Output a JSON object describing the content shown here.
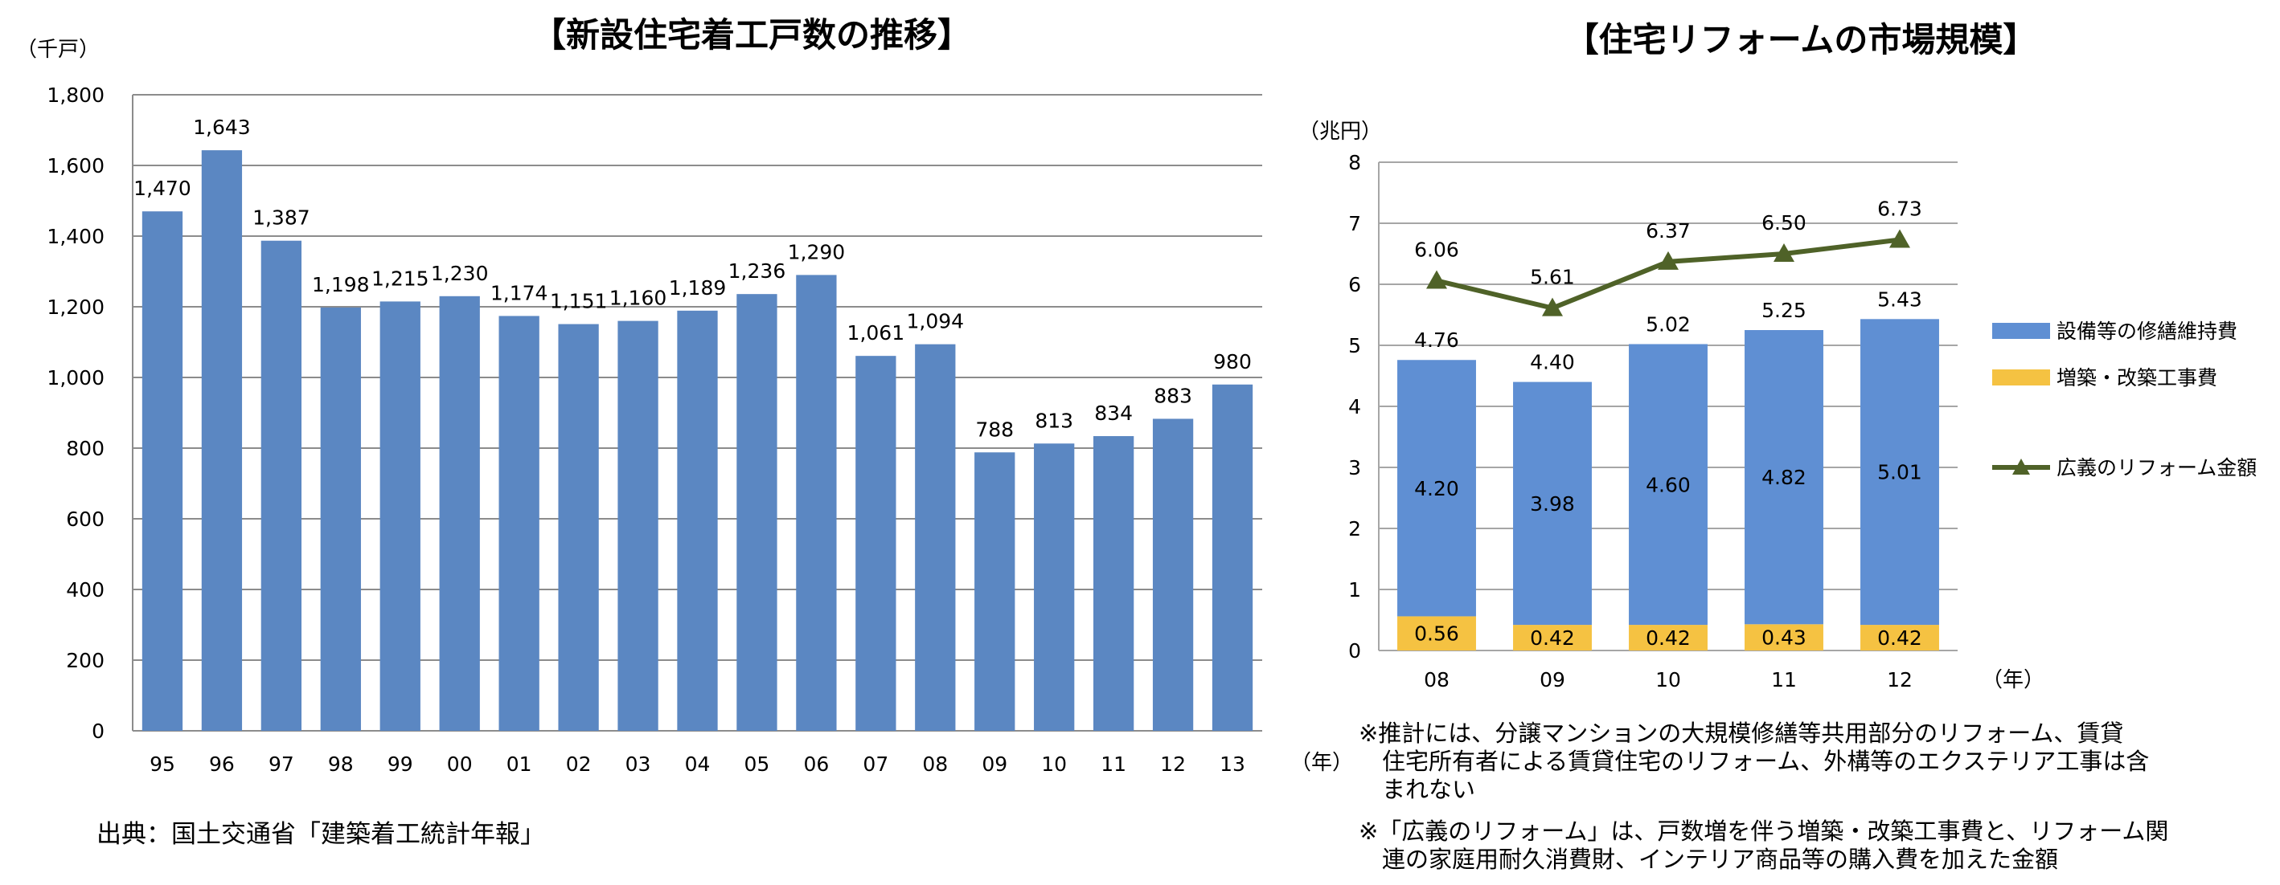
{
  "chart_data": [
    {
      "type": "bar",
      "title": "【新設住宅着工戸数の推移】",
      "ylabel": "（千戸）",
      "xlabel": "（年）",
      "ylim": [
        0,
        1800
      ],
      "yticks": [
        0,
        200,
        400,
        600,
        800,
        1000,
        1200,
        1400,
        1600,
        1800
      ],
      "ytick_labels": [
        "0",
        "200",
        "400",
        "600",
        "800",
        "1,000",
        "1,200",
        "1,400",
        "1,600",
        "1,800"
      ],
      "categories": [
        "95",
        "96",
        "97",
        "98",
        "99",
        "00",
        "01",
        "02",
        "03",
        "04",
        "05",
        "06",
        "07",
        "08",
        "09",
        "10",
        "11",
        "12",
        "13"
      ],
      "values": [
        1470,
        1643,
        1387,
        1198,
        1215,
        1230,
        1174,
        1151,
        1160,
        1189,
        1236,
        1290,
        1061,
        1094,
        788,
        813,
        834,
        883,
        980
      ],
      "data_labels": [
        "1,470",
        "1,643",
        "1,387",
        "1,198",
        "1,215",
        "1,230",
        "1,174",
        "1,151",
        "1,160",
        "1,189",
        "1,236",
        "1,290",
        "1,061",
        "1,094",
        "788",
        "813",
        "834",
        "883",
        "980"
      ],
      "grid": true,
      "color": "#5b87c2"
    },
    {
      "type": "bar",
      "stacked": true,
      "title": "【住宅リフォームの市場規模】",
      "ylabel": "（兆円）",
      "xlabel": "（年）",
      "ylim": [
        0,
        8
      ],
      "yticks": [
        0,
        1,
        2,
        3,
        4,
        5,
        6,
        7,
        8
      ],
      "categories": [
        "08",
        "09",
        "10",
        "11",
        "12"
      ],
      "series": [
        {
          "name": "増築・改築工事費",
          "values": [
            0.56,
            0.42,
            0.42,
            0.43,
            0.42
          ],
          "labels": [
            "0.56",
            "0.42",
            "0.42",
            "0.43",
            "0.42"
          ],
          "color": "#f5c242"
        },
        {
          "name": "設備等の修繕維持費",
          "values": [
            4.2,
            3.98,
            4.6,
            4.82,
            5.01
          ],
          "labels": [
            "4.20",
            "3.98",
            "4.60",
            "4.82",
            "5.01"
          ],
          "color": "#5f8fd3"
        }
      ],
      "totals": [
        4.76,
        4.4,
        5.02,
        5.25,
        5.43
      ],
      "total_labels": [
        "4.76",
        "4.40",
        "5.02",
        "5.25",
        "5.43"
      ],
      "line_series": {
        "name": "広義のリフォーム金額",
        "values": [
          6.06,
          5.61,
          6.37,
          6.5,
          6.73
        ],
        "labels": [
          "6.06",
          "5.61",
          "6.37",
          "6.50",
          "6.73"
        ],
        "color": "#4f6228",
        "marker": "triangle"
      },
      "legend": [
        "設備等の修繕維持費",
        "増築・改築工事費",
        "広義のリフォーム金額"
      ],
      "legend_position": "right",
      "grid": true
    }
  ],
  "notes": {
    "source": "出典：国土交通省「建築着工統計年報」",
    "note1": "※推計には、分譲マンションの大規模修繕等共用部分のリフォーム、賃貸\n　住宅所有者による賃貸住宅のリフォーム、外構等のエクステリア工事は含\n　まれない",
    "note2": "※「広義のリフォーム」は、戸数増を伴う増築・改築工事費と、リフォーム関\n　連の家庭用耐久消費財、インテリア商品等の購入費を加えた金額"
  }
}
